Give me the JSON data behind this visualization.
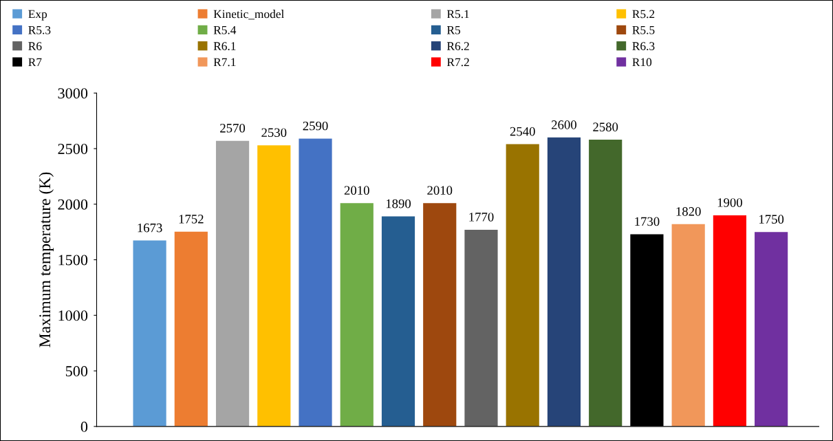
{
  "chart_data": {
    "type": "bar",
    "ylabel": "Maximum temperature (K)",
    "categories": [
      null,
      null,
      null,
      null,
      null,
      null,
      null,
      null,
      null,
      null,
      null,
      null,
      null,
      null,
      null,
      null
    ],
    "series": [
      {
        "name": "Exp",
        "color": "#5b9bd5",
        "values": [
          1673,
          null,
          null,
          null,
          null,
          null,
          null,
          null,
          null,
          null,
          null,
          null,
          null,
          null,
          null,
          null
        ]
      },
      {
        "name": "Kinetic_model",
        "color": "#ed7d31",
        "values": [
          null,
          1752,
          null,
          null,
          null,
          null,
          null,
          null,
          null,
          null,
          null,
          null,
          null,
          null,
          null,
          null
        ]
      },
      {
        "name": "R5.1",
        "color": "#a5a5a5",
        "values": [
          null,
          null,
          2570,
          null,
          null,
          null,
          null,
          null,
          null,
          null,
          null,
          null,
          null,
          null,
          null,
          null
        ]
      },
      {
        "name": "R5.2",
        "color": "#ffc000",
        "values": [
          null,
          null,
          null,
          2530,
          null,
          null,
          null,
          null,
          null,
          null,
          null,
          null,
          null,
          null,
          null,
          null
        ]
      },
      {
        "name": "R5.3",
        "color": "#4472c4",
        "values": [
          null,
          null,
          null,
          null,
          2590,
          null,
          null,
          null,
          null,
          null,
          null,
          null,
          null,
          null,
          null,
          null
        ]
      },
      {
        "name": "R5.4",
        "color": "#70ad47",
        "values": [
          null,
          null,
          null,
          null,
          null,
          2010,
          null,
          null,
          null,
          null,
          null,
          null,
          null,
          null,
          null,
          null
        ]
      },
      {
        "name": "R5",
        "color": "#255e91",
        "values": [
          null,
          null,
          null,
          null,
          null,
          null,
          1890,
          null,
          null,
          null,
          null,
          null,
          null,
          null,
          null,
          null
        ]
      },
      {
        "name": "R5.5",
        "color": "#9e480e",
        "values": [
          null,
          null,
          null,
          null,
          null,
          null,
          null,
          2010,
          null,
          null,
          null,
          null,
          null,
          null,
          null,
          null
        ]
      },
      {
        "name": "R6",
        "color": "#636363",
        "values": [
          null,
          null,
          null,
          null,
          null,
          null,
          null,
          null,
          1770,
          null,
          null,
          null,
          null,
          null,
          null,
          null
        ]
      },
      {
        "name": "R6.1",
        "color": "#997300",
        "values": [
          null,
          null,
          null,
          null,
          null,
          null,
          null,
          null,
          null,
          2540,
          null,
          null,
          null,
          null,
          null,
          null
        ]
      },
      {
        "name": "R6.2",
        "color": "#264478",
        "values": [
          null,
          null,
          null,
          null,
          null,
          null,
          null,
          null,
          null,
          null,
          2600,
          null,
          null,
          null,
          null,
          null
        ]
      },
      {
        "name": "R6.3",
        "color": "#43682b",
        "values": [
          null,
          null,
          null,
          null,
          null,
          null,
          null,
          null,
          null,
          null,
          null,
          2580,
          null,
          null,
          null,
          null
        ]
      },
      {
        "name": "R7",
        "color": "#000000",
        "values": [
          null,
          null,
          null,
          null,
          null,
          null,
          null,
          null,
          null,
          null,
          null,
          null,
          1730,
          null,
          null,
          null
        ]
      },
      {
        "name": "R7.1",
        "color": "#f1975a",
        "values": [
          null,
          null,
          null,
          null,
          null,
          null,
          null,
          null,
          null,
          null,
          null,
          null,
          null,
          1820,
          null,
          null
        ]
      },
      {
        "name": "R7.2",
        "color": "#ff0000",
        "values": [
          null,
          null,
          null,
          null,
          null,
          null,
          null,
          null,
          null,
          null,
          null,
          null,
          null,
          null,
          1900,
          null
        ]
      },
      {
        "name": "R10",
        "color": "#7030a0",
        "values": [
          null,
          null,
          null,
          null,
          null,
          null,
          null,
          null,
          null,
          null,
          null,
          null,
          null,
          null,
          null,
          1750
        ]
      }
    ],
    "ylim": [
      0,
      3000
    ],
    "yticks": [
      0,
      500,
      1000,
      1500,
      2000,
      2500,
      3000
    ],
    "stacked": true,
    "data_labels": true,
    "legend": "top",
    "grid": false
  }
}
